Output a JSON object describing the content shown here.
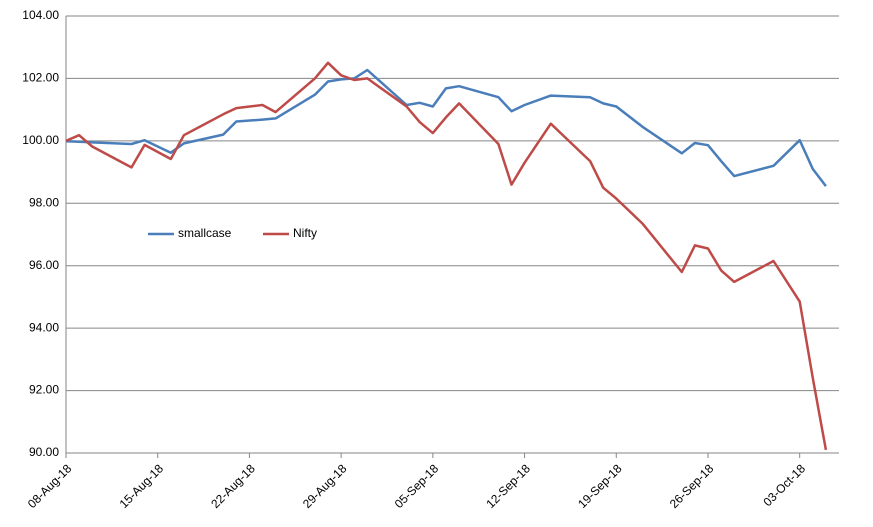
{
  "chart_data": {
    "type": "line",
    "x": [
      "2018-08-08",
      "2018-08-09",
      "2018-08-10",
      "2018-08-13",
      "2018-08-14",
      "2018-08-16",
      "2018-08-17",
      "2018-08-20",
      "2018-08-21",
      "2018-08-23",
      "2018-08-24",
      "2018-08-27",
      "2018-08-28",
      "2018-08-29",
      "2018-08-30",
      "2018-08-31",
      "2018-09-03",
      "2018-09-04",
      "2018-09-05",
      "2018-09-06",
      "2018-09-07",
      "2018-09-10",
      "2018-09-11",
      "2018-09-12",
      "2018-09-14",
      "2018-09-17",
      "2018-09-18",
      "2018-09-19",
      "2018-09-21",
      "2018-09-24",
      "2018-09-25",
      "2018-09-26",
      "2018-09-27",
      "2018-09-28",
      "2018-10-01",
      "2018-10-03",
      "2018-10-04",
      "2018-10-05"
    ],
    "series": [
      {
        "name": "smallcase",
        "color": "#4a7ebb",
        "values": [
          99.99,
          99.97,
          99.95,
          99.9,
          100.02,
          99.62,
          99.92,
          100.2,
          100.62,
          100.68,
          100.72,
          101.48,
          101.9,
          101.97,
          102.0,
          102.27,
          101.15,
          101.22,
          101.1,
          101.68,
          101.75,
          101.4,
          100.95,
          101.15,
          101.45,
          101.4,
          101.2,
          101.1,
          100.45,
          99.6,
          99.93,
          99.86,
          99.35,
          98.87,
          99.2,
          100.02,
          99.1,
          98.55
        ]
      },
      {
        "name": "Nifty",
        "color": "#be4b48",
        "values": [
          100.0,
          100.18,
          99.82,
          99.15,
          99.87,
          99.42,
          100.18,
          100.85,
          101.05,
          101.15,
          100.92,
          102.0,
          102.5,
          102.1,
          101.95,
          102.0,
          101.1,
          100.6,
          100.25,
          100.75,
          101.2,
          99.9,
          98.6,
          99.3,
          100.55,
          99.35,
          98.5,
          98.15,
          97.35,
          95.8,
          96.65,
          96.55,
          95.85,
          95.48,
          96.15,
          94.85,
          92.4,
          90.1
        ]
      }
    ],
    "xlim": [
      "2018-08-08",
      "2018-10-06"
    ],
    "xticks": [
      {
        "value": "2018-08-08",
        "label": "08-Aug-18"
      },
      {
        "value": "2018-08-15",
        "label": "15-Aug-18"
      },
      {
        "value": "2018-08-22",
        "label": "22-Aug-18"
      },
      {
        "value": "2018-08-29",
        "label": "29-Aug-18"
      },
      {
        "value": "2018-09-05",
        "label": "05-Sep-18"
      },
      {
        "value": "2018-09-12",
        "label": "12-Sep-18"
      },
      {
        "value": "2018-09-19",
        "label": "19-Sep-18"
      },
      {
        "value": "2018-09-26",
        "label": "26-Sep-18"
      },
      {
        "value": "2018-10-03",
        "label": "03-Oct-18"
      }
    ],
    "ylim": [
      90,
      104
    ],
    "yticks": [
      {
        "value": 90,
        "label": "90.00"
      },
      {
        "value": 92,
        "label": "92.00"
      },
      {
        "value": 94,
        "label": "94.00"
      },
      {
        "value": 96,
        "label": "96.00"
      },
      {
        "value": 98,
        "label": "98.00"
      },
      {
        "value": 100,
        "label": "100.00"
      },
      {
        "value": 102,
        "label": "102.00"
      },
      {
        "value": 104,
        "label": "104.00"
      }
    ],
    "grid": true
  }
}
